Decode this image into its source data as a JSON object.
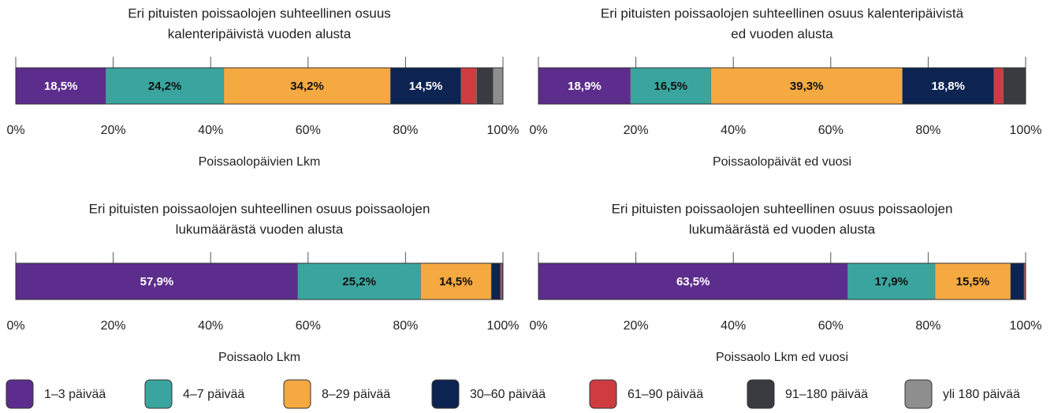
{
  "chart_data": [
    {
      "type": "stacked_bar",
      "title": [
        "Eri pituisten poissaolojen suhteellinen osuus",
        "kalenteripäivistä vuoden alusta"
      ],
      "xlabel": "Poissaolopäivien  Lkm",
      "values": [
        18.5,
        24.2,
        34.2,
        14.5,
        3.2,
        3.4,
        2.0
      ],
      "value_labels": [
        "18,5%",
        "24,2%",
        "34,2%",
        "14,5%",
        null,
        null,
        null
      ],
      "xlim": [
        0,
        100
      ],
      "xticks": [
        {
          "value": 0,
          "label": "0%"
        },
        {
          "value": 20,
          "label": "20%"
        },
        {
          "value": 40,
          "label": "40%"
        },
        {
          "value": 60,
          "label": "60%"
        },
        {
          "value": 80,
          "label": "80%"
        },
        {
          "value": 100,
          "label": "100%"
        }
      ]
    },
    {
      "type": "stacked_bar",
      "title": [
        "Eri pituisten poissaolojen suhteellinen osuus kalenteripäivistä",
        "ed vuoden alusta"
      ],
      "xlabel": "Poissaolopäivät ed vuosi",
      "values": [
        18.9,
        16.5,
        39.3,
        18.8,
        1.9,
        4.6,
        0
      ],
      "value_labels": [
        "18,9%",
        "16,5%",
        "39,3%",
        "18,8%",
        null,
        null,
        null
      ],
      "xlim": [
        0,
        100
      ],
      "xticks": [
        {
          "value": 0,
          "label": "0%"
        },
        {
          "value": 20,
          "label": "20%"
        },
        {
          "value": 40,
          "label": "40%"
        },
        {
          "value": 60,
          "label": "60%"
        },
        {
          "value": 80,
          "label": "80%"
        },
        {
          "value": 100,
          "label": "100%"
        }
      ]
    },
    {
      "type": "stacked_bar",
      "title": [
        "Eri pituisten poissaolojen suhteellinen osuus poissaolojen",
        "lukumäärästä vuoden alusta"
      ],
      "xlabel": "Poissaolo Lkm",
      "values": [
        57.9,
        25.2,
        14.5,
        1.9,
        0.3,
        0.2,
        0
      ],
      "value_labels": [
        "57,9%",
        "25,2%",
        "14,5%",
        null,
        null,
        null,
        null
      ],
      "xlim": [
        0,
        100
      ],
      "xticks": [
        {
          "value": 0,
          "label": "0%"
        },
        {
          "value": 20,
          "label": "20%"
        },
        {
          "value": 40,
          "label": "40%"
        },
        {
          "value": 60,
          "label": "60%"
        },
        {
          "value": 80,
          "label": "80%"
        },
        {
          "value": 100,
          "label": "100%"
        }
      ]
    },
    {
      "type": "stacked_bar",
      "title": [
        "Eri pituisten poissaolojen suhteellinen osuus poissaolojen",
        "lukumäärästä ed vuoden alusta"
      ],
      "xlabel": "Poissaolo Lkm ed vuosi",
      "values": [
        63.5,
        17.9,
        15.5,
        2.8,
        0.2,
        0.1,
        0
      ],
      "value_labels": [
        "63,5%",
        "17,9%",
        "15,5%",
        null,
        null,
        null,
        null
      ],
      "xlim": [
        0,
        100
      ],
      "xticks": [
        {
          "value": 0,
          "label": "0%"
        },
        {
          "value": 20,
          "label": "20%"
        },
        {
          "value": 40,
          "label": "40%"
        },
        {
          "value": 60,
          "label": "60%"
        },
        {
          "value": 80,
          "label": "80%"
        },
        {
          "value": 100,
          "label": "100%"
        }
      ]
    }
  ],
  "legend": [
    {
      "name": "1–3 päivää",
      "color": "#5c2d8c",
      "text_color": "#ffffff"
    },
    {
      "name": "4–7 päivää",
      "color": "#3aa59f",
      "text_color": "#111111"
    },
    {
      "name": "8–29 päivää",
      "color": "#f5a941",
      "text_color": "#111111"
    },
    {
      "name": "30–60 päivää",
      "color": "#0d2351",
      "text_color": "#ffffff"
    },
    {
      "name": "61–90 päivää",
      "color": "#cf3c40",
      "text_color": "#ffffff"
    },
    {
      "name": "91–180 päivää",
      "color": "#3a3b40",
      "text_color": "#ffffff"
    },
    {
      "name": "yli 180 päivää",
      "color": "#8e8e8e",
      "text_color": "#ffffff"
    }
  ]
}
